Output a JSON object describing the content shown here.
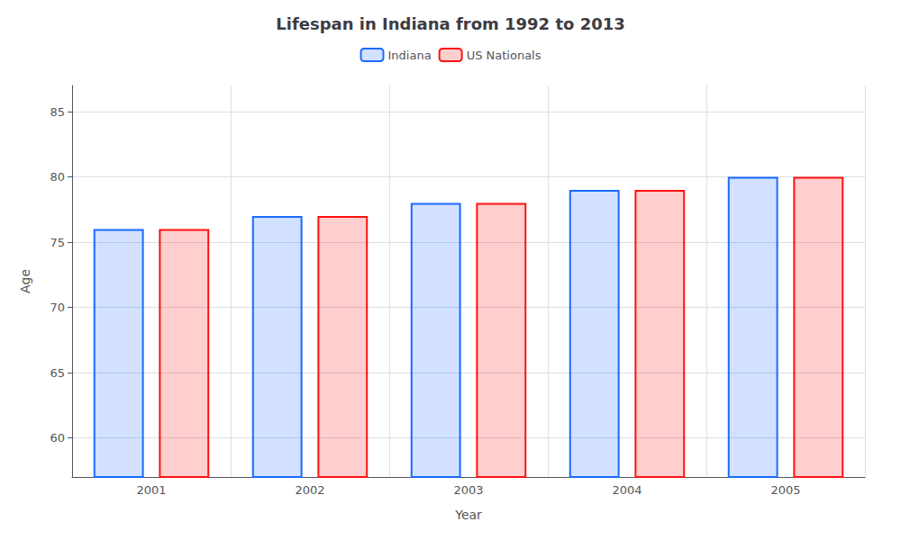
{
  "chart_data": {
    "type": "bar",
    "title": "Lifespan in Indiana from 1992 to 2013",
    "x_label": "Year",
    "y_label": "Age",
    "categories": [
      "2001",
      "2002",
      "2003",
      "2004",
      "2005"
    ],
    "series": [
      {
        "name": "Indiana",
        "color": "#1a6aff",
        "values": [
          76,
          77,
          78,
          79,
          80
        ]
      },
      {
        "name": "US Nationals",
        "color": "#ff1111",
        "values": [
          76,
          77,
          78,
          79,
          80
        ]
      }
    ],
    "ylim": [
      57,
      87
    ],
    "yticks": [
      60,
      65,
      70,
      75,
      80,
      85
    ],
    "grid": true,
    "legend": "top"
  }
}
